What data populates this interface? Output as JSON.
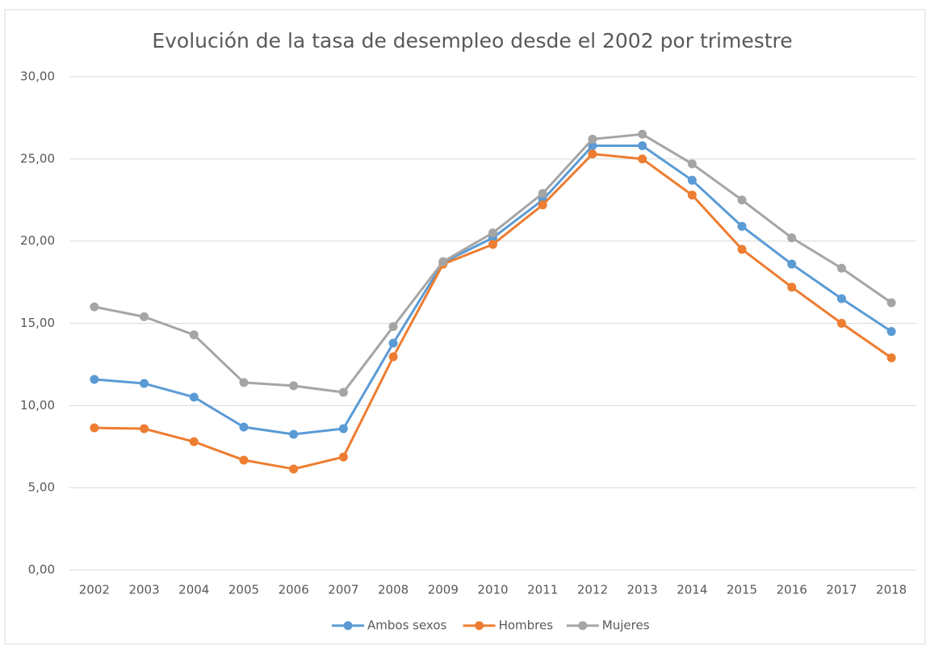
{
  "chart_data": {
    "type": "line",
    "title": "Evolución de la tasa de desempleo desde el 2002 por trimestre",
    "categories": [
      "2002",
      "2003",
      "2004",
      "2005",
      "2006",
      "2007",
      "2008",
      "2009",
      "2010",
      "2011",
      "2012",
      "2013",
      "2014",
      "2015",
      "2016",
      "2017",
      "2018"
    ],
    "series": [
      {
        "name": "Ambos sexos",
        "color": "#5b9bd5",
        "values": [
          11.59,
          11.34,
          10.51,
          8.69,
          8.25,
          8.59,
          13.79,
          18.7,
          20.2,
          22.5,
          25.8,
          25.8,
          23.7,
          20.9,
          18.6,
          16.5,
          14.5
        ]
      },
      {
        "name": "Hombres",
        "color": "#ed7d31",
        "values": [
          8.64,
          8.59,
          7.8,
          6.68,
          6.14,
          6.87,
          12.96,
          18.6,
          19.8,
          22.2,
          25.3,
          25.0,
          22.8,
          19.5,
          17.2,
          15.0,
          12.9
        ]
      },
      {
        "name": "Mujeres",
        "color": "#a5a5a5",
        "values": [
          16.0,
          15.4,
          14.3,
          11.4,
          11.2,
          10.8,
          14.8,
          18.75,
          20.5,
          22.9,
          26.2,
          26.5,
          24.7,
          22.5,
          20.2,
          18.35,
          16.25
        ]
      }
    ],
    "ylim": [
      0,
      30
    ],
    "yticks": [
      {
        "value": 0,
        "label": "0,00"
      },
      {
        "value": 5,
        "label": "5,00"
      },
      {
        "value": 10,
        "label": "10,00"
      },
      {
        "value": 15,
        "label": "15,00"
      },
      {
        "value": 20,
        "label": "20,00"
      },
      {
        "value": 25,
        "label": "25,00"
      },
      {
        "value": 30,
        "label": "30,00"
      }
    ],
    "grid": true,
    "legend": "bottom"
  }
}
